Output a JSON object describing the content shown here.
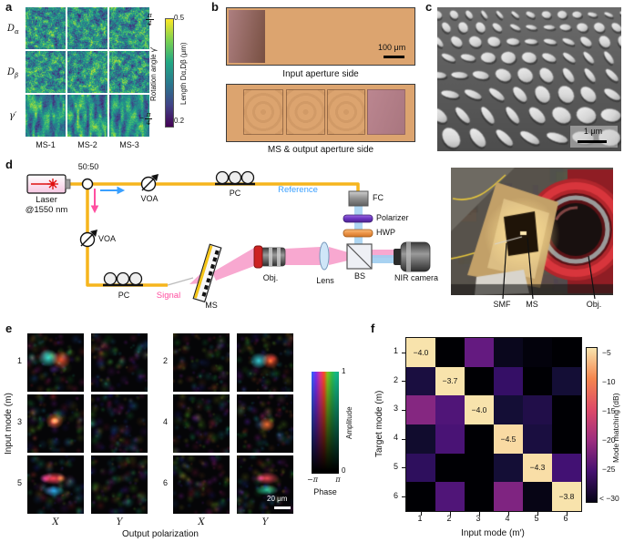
{
  "figure": {
    "panel_labels": {
      "a": "a",
      "b": "b",
      "c": "c",
      "d": "d",
      "e": "e",
      "f": "f"
    }
  },
  "panel_a": {
    "row_labels": [
      {
        "base": "D",
        "sub": "α"
      },
      {
        "base": "D",
        "sub": "β"
      },
      {
        "base": "γ′",
        "sub": ""
      }
    ],
    "col_labels": [
      "MS-1",
      "MS-2",
      "MS-3"
    ],
    "colorbar": {
      "left_label": "Rotation angle γ′",
      "right_label": "Length Dα,Dβ (μm)",
      "top_left_tick": {
        "sign": "",
        "num": "π",
        "den": "4"
      },
      "bottom_left_tick": {
        "sign": "−",
        "num": "π",
        "den": "4"
      },
      "top_right_tick": "0.5",
      "bottom_right_tick": "0.2"
    }
  },
  "panel_b": {
    "top_caption": "Input aperture side",
    "bottom_caption": "MS & output aperture side",
    "scale_label": "100 μm"
  },
  "panel_c": {
    "scale_label": "1 μm"
  },
  "panel_d": {
    "laser_label": "Laser",
    "laser_sublabel": "@1550 nm",
    "splitter_label": "50:50",
    "voa1_label": "VOA",
    "voa2_label": "VOA",
    "pc1_label": "PC",
    "pc2_label": "PC",
    "reference_label": "Reference",
    "signal_label": "Signal",
    "fc_label": "FC",
    "polarizer_label": "Polarizer",
    "hwp_label": "HWP",
    "obj_label": "Obj.",
    "lens_label": "Lens",
    "bs_label": "BS",
    "camera_label": "NIR camera",
    "ms_label": "MS",
    "photo_labels": [
      "SMF",
      "MS",
      "Obj."
    ],
    "colors": {
      "fiber": "#f6b51d",
      "reference": "#3aa0ff",
      "signal": "#ff4fa0"
    }
  },
  "panel_e": {
    "y_axis_label": "Input mode (m)",
    "mode_numbers": [
      "1",
      "2",
      "3",
      "4",
      "5",
      "6"
    ],
    "col_labels": [
      "X",
      "Y",
      "X",
      "Y"
    ],
    "x_axis_label": "Output polarization",
    "scale_label": "20 μm",
    "colorbar": {
      "amp_label": "Amplitude",
      "amp_top": "1",
      "amp_bottom": "0",
      "phase_label": "Phase",
      "phase_left": "−π",
      "phase_right": "π"
    }
  },
  "panel_f": {
    "y_axis_label": "Target mode (m)",
    "x_axis_label": "Input mode (m′)",
    "x_ticks": [
      "1",
      "2",
      "3",
      "4",
      "5",
      "6"
    ],
    "y_ticks": [
      "1",
      "2",
      "3",
      "4",
      "5",
      "6"
    ],
    "colorbar_label": "Mode matching (dB)",
    "colorbar_ticks": [
      "−5",
      "−10",
      "−15",
      "−20",
      "−25",
      "< −30"
    ]
  },
  "chart_data": {
    "type": "heatmap",
    "title": "Mode matching matrix",
    "xlabel": "Input mode (m′)",
    "ylabel": "Target mode (m)",
    "x": [
      1,
      2,
      3,
      4,
      5,
      6
    ],
    "y": [
      1,
      2,
      3,
      4,
      5,
      6
    ],
    "values": [
      [
        -4.0,
        -31.0,
        -22.0,
        -29.5,
        -30.5,
        -31.0
      ],
      [
        -27.5,
        -3.7,
        -31.0,
        -25.5,
        -31.0,
        -28.0
      ],
      [
        -19.5,
        -23.5,
        -4.0,
        -28.0,
        -27.0,
        -31.0
      ],
      [
        -28.5,
        -24.0,
        -31.0,
        -4.5,
        -27.5,
        -31.0
      ],
      [
        -26.0,
        -31.0,
        -31.0,
        -28.0,
        -4.3,
        -24.5
      ],
      [
        -31.0,
        -23.5,
        -31.0,
        -20.0,
        -30.0,
        -3.8
      ]
    ],
    "cell_labels": [
      [
        "−4.0",
        "",
        "",
        "",
        "",
        ""
      ],
      [
        "",
        "−3.7",
        "",
        "",
        "",
        ""
      ],
      [
        "",
        "",
        "−4.0",
        "",
        "",
        ""
      ],
      [
        "",
        "",
        "",
        "−4.5",
        "",
        ""
      ],
      [
        "",
        "",
        "",
        "",
        "−4.3",
        ""
      ],
      [
        "",
        "",
        "",
        "",
        "",
        "−3.8"
      ]
    ],
    "colorbar": {
      "label": "Mode matching (dB)",
      "range": [
        -31,
        -4
      ],
      "ticks": [
        -5,
        -10,
        -15,
        -20,
        -25,
        -30
      ],
      "colormap": "magma"
    },
    "legend_position": "right",
    "grid": false
  }
}
